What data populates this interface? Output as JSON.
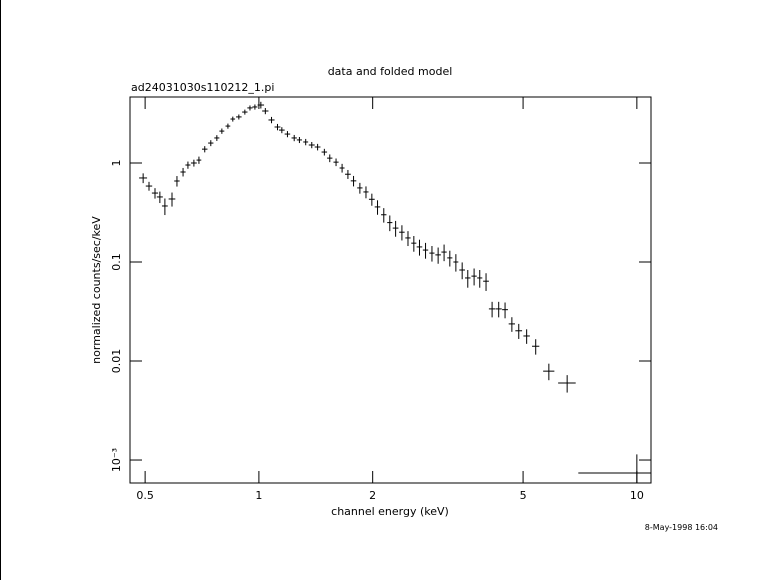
{
  "chart_data": {
    "type": "scatter",
    "title": "data and folded model",
    "subtitle": "ad24031030s110212_1.pi",
    "x_label": "channel energy (keV)",
    "y_label": "normalized counts/sec/keV",
    "timestamp": "8-May-1998 16:04",
    "log_x": true,
    "log_y": true,
    "grid": false,
    "color": "#000000",
    "xlim": [
      0.456,
      10.9
    ],
    "ylim": [
      0.000586,
      4.64
    ],
    "xticks": [
      0.5,
      1,
      2,
      5,
      10
    ],
    "yticks": [
      {
        "value": 0.001,
        "label": "10⁻³"
      },
      0.01,
      0.1,
      1
    ],
    "series": [
      {
        "x": [
          0.494,
          0.512,
          0.531,
          0.547,
          0.564,
          0.589,
          0.607,
          0.63,
          0.649,
          0.673,
          0.694,
          0.719,
          0.746,
          0.774,
          0.798,
          0.828,
          0.853,
          0.885,
          0.918,
          0.947,
          0.976,
          1.012,
          1.04,
          1.08,
          1.12,
          1.15,
          1.19,
          1.24,
          1.28,
          1.33,
          1.38,
          1.43,
          1.49,
          1.54,
          1.6,
          1.66,
          1.72,
          1.78,
          1.85,
          1.92,
          1.99,
          2.06,
          2.14,
          2.22,
          2.3,
          2.39,
          2.48,
          2.57,
          2.66,
          2.76,
          2.87,
          2.98,
          3.09,
          3.2,
          3.32,
          3.45,
          3.57,
          3.71,
          3.84,
          3.99,
          4.14,
          4.31,
          4.48,
          4.67,
          4.87,
          5.11,
          5.4,
          5.85,
          6.54,
          10
        ],
        "xerr": [
          0.012,
          0.01,
          0.01,
          0.01,
          0.01,
          0.012,
          0.01,
          0.01,
          0.01,
          0.012,
          0.01,
          0.012,
          0.012,
          0.012,
          0.012,
          0.012,
          0.012,
          0.015,
          0.015,
          0.015,
          0.015,
          0.02,
          0.02,
          0.02,
          0.02,
          0.02,
          0.02,
          0.02,
          0.02,
          0.02,
          0.025,
          0.025,
          0.025,
          0.025,
          0.025,
          0.025,
          0.03,
          0.03,
          0.03,
          0.03,
          0.035,
          0.035,
          0.035,
          0.035,
          0.04,
          0.04,
          0.04,
          0.04,
          0.045,
          0.045,
          0.045,
          0.05,
          0.05,
          0.05,
          0.05,
          0.06,
          0.06,
          0.06,
          0.06,
          0.07,
          0.08,
          0.08,
          0.08,
          0.09,
          0.1,
          0.1,
          0.12,
          0.2,
          0.35,
          3
        ],
        "y": [
          0.706,
          0.585,
          0.497,
          0.454,
          0.368,
          0.433,
          0.658,
          0.811,
          0.954,
          1.0,
          1.07,
          1.38,
          1.59,
          1.79,
          2.1,
          2.36,
          2.78,
          2.92,
          3.27,
          3.6,
          3.68,
          3.85,
          3.35,
          2.72,
          2.31,
          2.15,
          1.96,
          1.79,
          1.71,
          1.63,
          1.52,
          1.45,
          1.29,
          1.12,
          1.02,
          0.89,
          0.77,
          0.66,
          0.56,
          0.51,
          0.43,
          0.36,
          0.3,
          0.25,
          0.22,
          0.2,
          0.175,
          0.155,
          0.142,
          0.132,
          0.123,
          0.118,
          0.126,
          0.11,
          0.1,
          0.083,
          0.069,
          0.072,
          0.069,
          0.064,
          0.0336,
          0.0336,
          0.033,
          0.0237,
          0.0202,
          0.0179,
          0.0141,
          0.0079,
          0.006,
          0.00074
        ],
        "yerr": [
          0.08,
          0.06,
          0.06,
          0.06,
          0.07,
          0.07,
          0.08,
          0.08,
          0.08,
          0.08,
          0.09,
          0.1,
          0.11,
          0.12,
          0.13,
          0.14,
          0.16,
          0.17,
          0.19,
          0.21,
          0.22,
          0.3,
          0.24,
          0.2,
          0.17,
          0.15,
          0.14,
          0.13,
          0.12,
          0.12,
          0.11,
          0.11,
          0.1,
          0.1,
          0.09,
          0.09,
          0.08,
          0.08,
          0.07,
          0.07,
          0.06,
          0.06,
          0.05,
          0.045,
          0.04,
          0.035,
          0.03,
          0.028,
          0.026,
          0.024,
          0.022,
          0.022,
          0.024,
          0.02,
          0.02,
          0.016,
          0.014,
          0.014,
          0.014,
          0.013,
          0.006,
          0.006,
          0.006,
          0.004,
          0.0035,
          0.003,
          0.0025,
          0.0015,
          0.0012,
          0.0004
        ]
      }
    ]
  }
}
